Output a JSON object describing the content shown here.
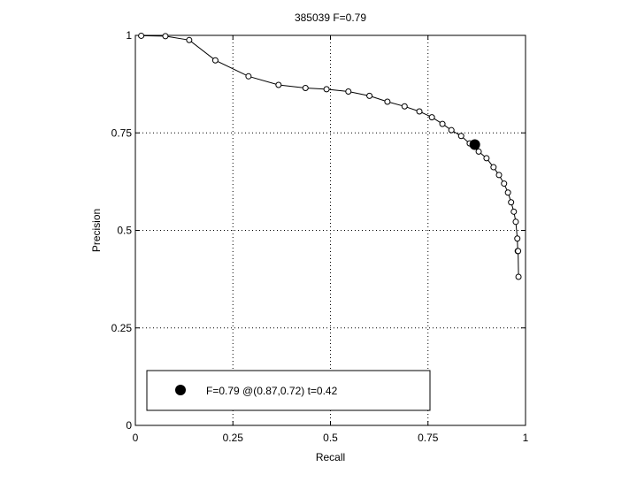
{
  "chart_data": {
    "type": "line",
    "title": "385039 F=0.79",
    "xlabel": "Recall",
    "ylabel": "Precision",
    "xlim": [
      0,
      1
    ],
    "ylim": [
      0,
      1
    ],
    "grid": true,
    "xticks": [
      0,
      0.25,
      0.5,
      0.75,
      1
    ],
    "yticks": [
      0,
      0.25,
      0.5,
      0.75,
      1
    ],
    "xtick_labels": [
      "0",
      "0.25",
      "0.5",
      "0.75",
      "1"
    ],
    "ytick_labels": [
      "0",
      "0.25",
      "0.5",
      "0.75",
      "1"
    ],
    "series": [
      {
        "marker": "open-circle",
        "color": "#000000",
        "x": [
          0.015,
          0.077,
          0.138,
          0.205,
          0.29,
          0.367,
          0.436,
          0.49,
          0.546,
          0.6,
          0.646,
          0.69,
          0.728,
          0.76,
          0.787,
          0.81,
          0.835,
          0.857,
          0.88,
          0.9,
          0.918,
          0.932,
          0.945,
          0.955,
          0.963,
          0.97,
          0.975,
          0.979,
          0.98,
          0.981,
          0.982
        ],
        "y": [
          0.999,
          0.998,
          0.988,
          0.936,
          0.895,
          0.873,
          0.865,
          0.862,
          0.856,
          0.845,
          0.83,
          0.818,
          0.805,
          0.79,
          0.773,
          0.757,
          0.742,
          0.723,
          0.702,
          0.685,
          0.662,
          0.642,
          0.62,
          0.597,
          0.572,
          0.548,
          0.522,
          0.479,
          0.447,
          0.447,
          0.381
        ]
      }
    ],
    "highlight": {
      "x": 0.87,
      "y": 0.72
    },
    "legend": {
      "placement": "bottom-left",
      "label": "F=0.79 @(0.87,0.72) t=0.42"
    }
  }
}
